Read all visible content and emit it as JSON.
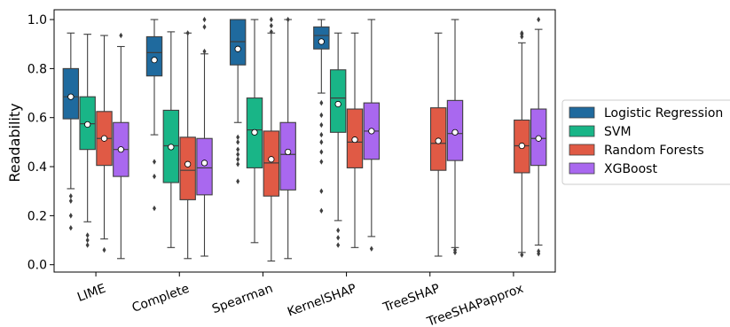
{
  "chart_data": {
    "type": "boxplot",
    "ylabel": "Readability",
    "xlabel": "",
    "ylim": [
      -0.03,
      1.04
    ],
    "yticks": [
      0.0,
      0.2,
      0.4,
      0.6,
      0.8,
      1.0
    ],
    "ytick_labels": [
      "0.0",
      "0.2",
      "0.4",
      "0.6",
      "0.8",
      "1.0"
    ],
    "categories": [
      "LIME",
      "Complete",
      "Spearman",
      "KernelSHAP",
      "TreeSHAP",
      "TreeSHAPapprox"
    ],
    "legend_position": "right",
    "series": [
      {
        "name": "Logistic Regression",
        "color": "#1f6a9e",
        "boxes": [
          {
            "whislo": 0.31,
            "q1": 0.595,
            "med": 0.685,
            "q3": 0.8,
            "whishi": 0.945,
            "mean": 0.685,
            "fliers": [
              0.28,
              0.26,
              0.2,
              0.15
            ]
          },
          {
            "whislo": 0.53,
            "q1": 0.77,
            "med": 0.865,
            "q3": 0.93,
            "whishi": 1.0,
            "mean": 0.835,
            "fliers": [
              0.42,
              0.36,
              0.23
            ]
          },
          {
            "whislo": 0.58,
            "q1": 0.815,
            "med": 0.91,
            "q3": 1.0,
            "whishi": 1.0,
            "mean": 0.88,
            "fliers": [
              0.52,
              0.5,
              0.47,
              0.45,
              0.43,
              0.41,
              0.34
            ]
          },
          {
            "whislo": 0.7,
            "q1": 0.88,
            "med": 0.935,
            "q3": 0.97,
            "whishi": 1.0,
            "mean": 0.91,
            "fliers": [
              0.66,
              0.61,
              0.57,
              0.53,
              0.5,
              0.46,
              0.42,
              0.3,
              0.22
            ]
          },
          null,
          null
        ]
      },
      {
        "name": "SVM",
        "color": "#19b587",
        "boxes": [
          {
            "whislo": 0.175,
            "q1": 0.47,
            "med": 0.575,
            "q3": 0.685,
            "whishi": 0.94,
            "mean": 0.572,
            "fliers": [
              0.12,
              0.1,
              0.08
            ]
          },
          {
            "whislo": 0.07,
            "q1": 0.335,
            "med": 0.485,
            "q3": 0.63,
            "whishi": 0.95,
            "mean": 0.48,
            "fliers": []
          },
          {
            "whislo": 0.09,
            "q1": 0.395,
            "med": 0.55,
            "q3": 0.68,
            "whishi": 1.0,
            "mean": 0.54,
            "fliers": []
          },
          {
            "whislo": 0.18,
            "q1": 0.54,
            "med": 0.68,
            "q3": 0.795,
            "whishi": 0.945,
            "mean": 0.655,
            "fliers": [
              0.14,
              0.11,
              0.08
            ]
          },
          null,
          null
        ]
      },
      {
        "name": "Random Forests",
        "color": "#e05a45",
        "boxes": [
          {
            "whislo": 0.105,
            "q1": 0.405,
            "med": 0.515,
            "q3": 0.625,
            "whishi": 0.935,
            "mean": 0.515,
            "fliers": [
              0.06
            ]
          },
          {
            "whislo": 0.025,
            "q1": 0.265,
            "med": 0.385,
            "q3": 0.52,
            "whishi": 0.945,
            "mean": 0.41,
            "fliers": [
              0.945
            ]
          },
          {
            "whislo": 0.015,
            "q1": 0.28,
            "med": 0.415,
            "q3": 0.545,
            "whishi": 0.945,
            "mean": 0.43,
            "fliers": [
              1.0,
              0.975,
              0.95
            ]
          },
          {
            "whislo": 0.07,
            "q1": 0.395,
            "med": 0.5,
            "q3": 0.635,
            "whishi": 0.945,
            "mean": 0.51,
            "fliers": []
          },
          {
            "whislo": 0.035,
            "q1": 0.385,
            "med": 0.495,
            "q3": 0.64,
            "whishi": 0.945,
            "mean": 0.505,
            "fliers": []
          },
          {
            "whislo": 0.05,
            "q1": 0.375,
            "med": 0.485,
            "q3": 0.59,
            "whishi": 0.905,
            "mean": 0.485,
            "fliers": [
              0.04,
              0.945,
              0.94,
              0.93
            ]
          }
        ]
      },
      {
        "name": "XGBoost",
        "color": "#a968ef",
        "boxes": [
          {
            "whislo": 0.025,
            "q1": 0.36,
            "med": 0.47,
            "q3": 0.58,
            "whishi": 0.89,
            "mean": 0.47,
            "fliers": [
              0.935
            ]
          },
          {
            "whislo": 0.035,
            "q1": 0.285,
            "med": 0.395,
            "q3": 0.515,
            "whishi": 0.86,
            "mean": 0.415,
            "fliers": [
              1.0,
              0.97,
              0.87
            ]
          },
          {
            "whislo": 0.025,
            "q1": 0.305,
            "med": 0.45,
            "q3": 0.58,
            "whishi": 1.0,
            "mean": 0.46,
            "fliers": [
              1.0
            ]
          },
          {
            "whislo": 0.115,
            "q1": 0.43,
            "med": 0.545,
            "q3": 0.66,
            "whishi": 1.0,
            "mean": 0.545,
            "fliers": [
              0.065
            ]
          },
          {
            "whislo": 0.07,
            "q1": 0.425,
            "med": 0.535,
            "q3": 0.67,
            "whishi": 1.0,
            "mean": 0.54,
            "fliers": [
              0.06,
              0.05
            ]
          },
          {
            "whislo": 0.08,
            "q1": 0.405,
            "med": 0.515,
            "q3": 0.635,
            "whishi": 0.96,
            "mean": 0.515,
            "fliers": [
              0.055,
              0.045,
              1.0
            ]
          }
        ]
      }
    ]
  }
}
